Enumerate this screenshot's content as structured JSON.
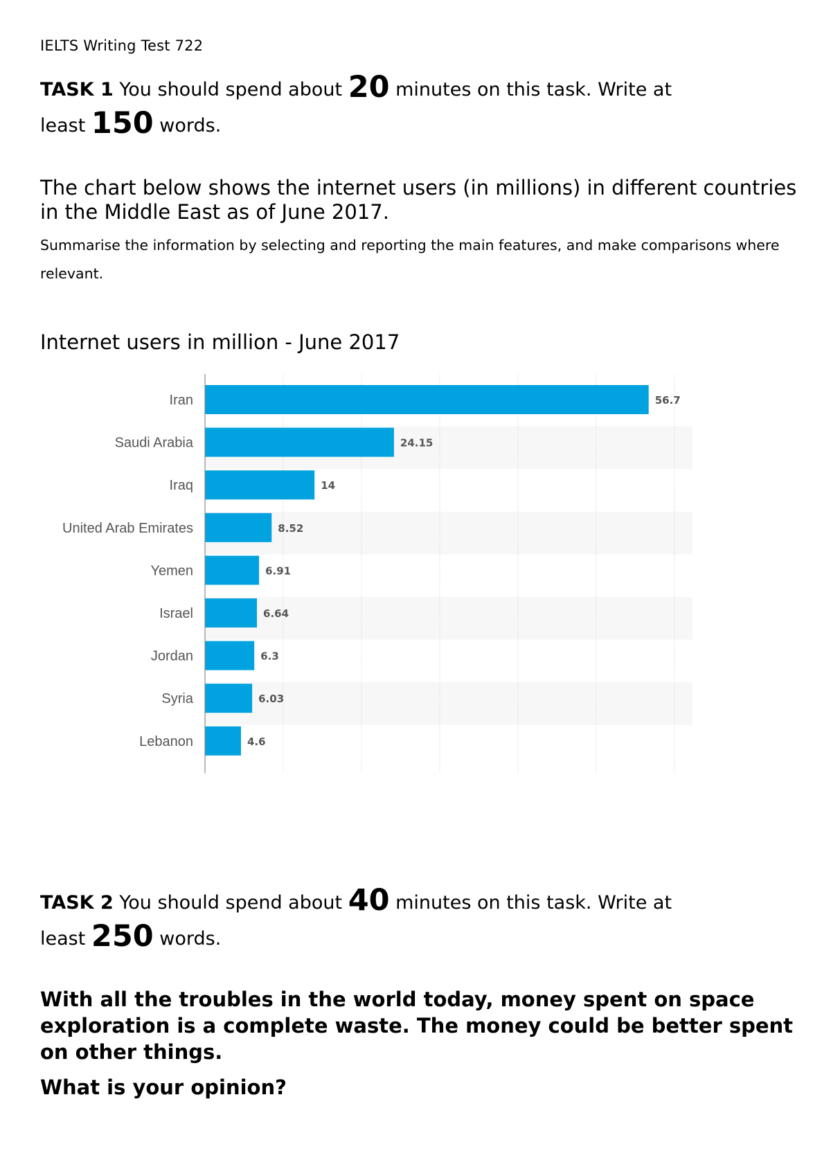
{
  "header": "IELTS Writing Test 722",
  "task1": {
    "label": "TASK 1",
    "text_before": "You should spend about",
    "minutes": "20",
    "text_after": "minutes on this task. Write at",
    "least": "least",
    "words_count": "150",
    "words": "words.",
    "prompt": "The chart below shows the internet users (in millions) in different countries in the Middle East as of June 2017.",
    "instruction": "Summarise the information by selecting and reporting the main features, and make comparisons where relevant.",
    "chart_heading": "Internet users in million - June 2017"
  },
  "chart_data": {
    "type": "bar",
    "orientation": "horizontal",
    "title": "Internet users in million - June 2017",
    "categories": [
      "Iran",
      "Saudi Arabia",
      "Iraq",
      "United Arab Emirates",
      "Yemen",
      "Israel",
      "Jordan",
      "Syria",
      "Lebanon"
    ],
    "values": [
      56.7,
      24.15,
      14,
      8.52,
      6.91,
      6.64,
      6.3,
      6.03,
      4.6
    ],
    "value_labels": [
      "56.7",
      "24.15",
      "14",
      "8.52",
      "6.91",
      "6.64",
      "6.3",
      "6.03",
      "4.6"
    ],
    "xlim": [
      0,
      60
    ],
    "grid": true,
    "bar_color": "#00a3e0",
    "band_color": "#f7f7f7"
  },
  "task2": {
    "label": "TASK 2",
    "text_before": "You should spend about",
    "minutes": "40",
    "text_after": "minutes on this task. Write at",
    "least": "least",
    "words_count": "250",
    "words": "words.",
    "question": "With all the troubles in the world today, money spent on space exploration is a complete waste. The money could be better spent on other things.",
    "opinion": "What is your opinion?"
  }
}
